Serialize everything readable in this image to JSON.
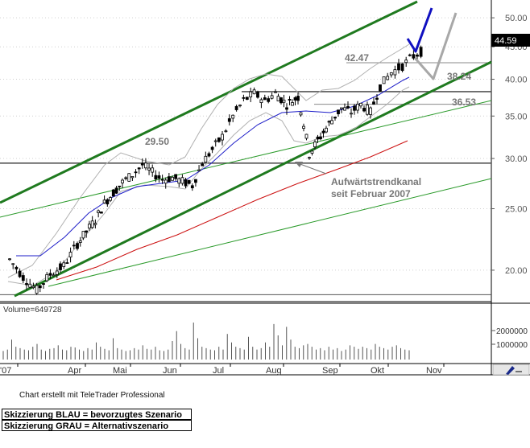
{
  "chart_data": [
    {
      "type": "candlestick",
      "price_axis": {
        "ticks": [
          20.0,
          25.0,
          30.0,
          35.0,
          40.0,
          45.0,
          50.0
        ],
        "scale": "log",
        "range": [
          18.0,
          51.5
        ]
      },
      "x_ticks": [
        "'07",
        "Apr",
        "Mai",
        "Jun",
        "Jul",
        "Aug",
        "Sep",
        "Okt",
        "Nov"
      ],
      "last_price": "44.59",
      "annotations": {
        "level_2950": "29.50",
        "level_4247": "42.47",
        "level_3824": "38.24",
        "level_3653": "36.53",
        "trend_text_1": "Aufwärtstrendkanal",
        "trend_text_2": "seit Februar 2007"
      },
      "horizontal_levels": [
        18.3,
        29.5,
        36.53,
        38.24,
        42.47
      ],
      "price_path": [
        [
          "'07",
          20.8
        ],
        [
          "'07",
          19.5
        ],
        [
          "'07",
          18.6
        ],
        [
          "'07",
          19.7
        ],
        [
          "'07",
          20.3
        ],
        [
          "Apr",
          22.0
        ],
        [
          "Apr",
          23.0
        ],
        [
          "Apr",
          24.0
        ],
        [
          "Apr",
          25.5
        ],
        [
          "Apr",
          26.5
        ],
        [
          "Mai",
          27.5
        ],
        [
          "Mai",
          28.3
        ],
        [
          "Mai",
          29.3
        ],
        [
          "Mai",
          28.5
        ],
        [
          "Mai",
          27.8
        ],
        [
          "Jun",
          28.0
        ],
        [
          "Jun",
          27.6
        ],
        [
          "Jun",
          27.2
        ],
        [
          "Jun",
          29.5
        ],
        [
          "Jun",
          31.0
        ],
        [
          "Jul",
          32.5
        ],
        [
          "Jul",
          35.0
        ],
        [
          "Jul",
          37.0
        ],
        [
          "Jul",
          38.0
        ],
        [
          "Jul",
          37.0
        ],
        [
          "Aug",
          38.0
        ],
        [
          "Aug",
          36.5
        ],
        [
          "Aug",
          37.5
        ],
        [
          "Aug",
          30.5
        ],
        [
          "Aug",
          32.5
        ],
        [
          "Sep",
          34.5
        ],
        [
          "Sep",
          36.0
        ],
        [
          "Sep",
          35.5
        ],
        [
          "Sep",
          36.5
        ],
        [
          "Sep",
          35.5
        ],
        [
          "Okt",
          39.0
        ],
        [
          "Okt",
          41.0
        ],
        [
          "Okt",
          42.0
        ],
        [
          "Okt",
          43.5
        ],
        [
          "Okt",
          44.59
        ]
      ],
      "scenarios": {
        "blue": [
          [
            44.59,
            "Okt"
          ],
          [
            43.0,
            "Okt"
          ],
          [
            50.5,
            "Nov"
          ]
        ],
        "gray": [
          [
            43.0,
            "Okt"
          ],
          [
            38.8,
            "Nov"
          ],
          [
            50.0,
            "Nov"
          ]
        ]
      }
    },
    {
      "type": "bar",
      "title": "Volume=649728",
      "ticks": [
        "1000000",
        "2000000"
      ],
      "values": [
        600000,
        700000,
        1400000,
        900000,
        800000,
        700000,
        650000,
        900000,
        1100000,
        700000,
        600000,
        750000,
        800000,
        1000000,
        700000,
        650000,
        900000,
        850000,
        700000,
        600000,
        800000,
        700000,
        1200000,
        900000,
        750000,
        650000,
        1500000,
        800000,
        700000,
        600000,
        650000,
        800000,
        700000,
        1000000,
        750000,
        700000,
        900000,
        650000,
        600000,
        700000,
        1300000,
        2000000,
        1100000,
        800000,
        700000,
        2600000,
        1500000,
        900000,
        800000,
        700000,
        650000,
        900000,
        700000,
        1800000,
        1200000,
        900000,
        800000,
        700000,
        1600000,
        900000,
        700000,
        800000,
        1200000,
        900000,
        2500000,
        1700000,
        1000000,
        2300000,
        1400000,
        900000,
        800000,
        1000000,
        1100000,
        900000,
        700000,
        800000,
        650000,
        900000,
        700000,
        800000,
        600000,
        700000,
        1000000,
        900000,
        750000,
        900000,
        800000,
        700000,
        1100000,
        900000,
        800000,
        700000,
        900000,
        1000000,
        800000,
        700000,
        649728
      ]
    }
  ],
  "footer": {
    "credit": "Chart erstellt mit TeleTrader Professional",
    "legend_blue": "Skizzierung BLAU = bevorzugtes Szenario",
    "legend_gray": "Skizzierung GRAU = Alternativszenario"
  },
  "colors": {
    "channel": "#1f7a1f",
    "ma_blue": "#1c1cc8",
    "ma_red": "#cc1111",
    "scenario_blue": "#1010c0",
    "scenario_gray": "#a8a8a8",
    "price_tag_bg": "#000000"
  }
}
